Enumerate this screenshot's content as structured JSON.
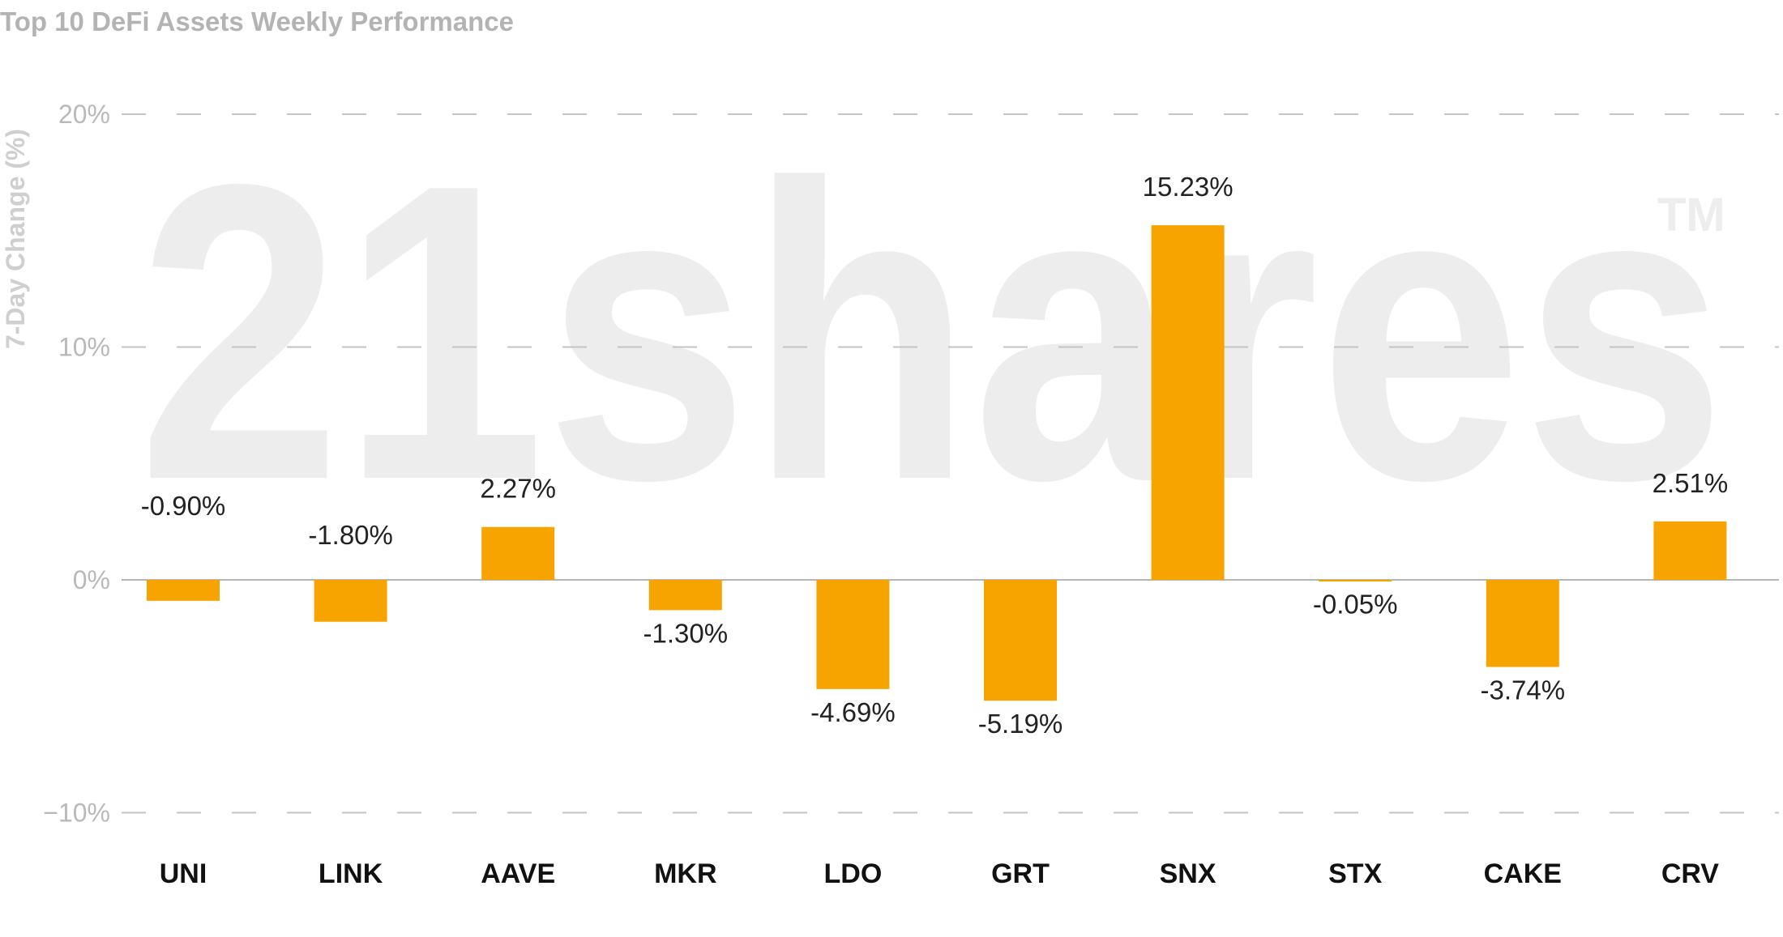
{
  "chart_data": {
    "type": "bar",
    "title": "Top 10 DeFi Assets Weekly Performance",
    "ylabel": "7-Day Change (%)",
    "xlabel": "",
    "ylim": [
      -10,
      20
    ],
    "yticks": [
      -10,
      0,
      10,
      20
    ],
    "ytick_labels": [
      "−10%",
      "0%",
      "10%",
      "20%"
    ],
    "grid": "horizontal dashed",
    "legend": "none",
    "categories": [
      "UNI",
      "LINK",
      "AAVE",
      "MKR",
      "LDO",
      "GRT",
      "SNX",
      "STX",
      "CAKE",
      "CRV"
    ],
    "values": [
      -0.9,
      -1.8,
      2.27,
      -1.3,
      -4.69,
      -5.19,
      15.23,
      -0.05,
      -3.74,
      2.51
    ],
    "value_labels": [
      "-0.90%",
      "-1.80%",
      "2.27%",
      "-1.30%",
      "-4.69%",
      "-5.19%",
      "15.23%",
      "-0.05%",
      "-3.74%",
      "2.51%"
    ],
    "bar_color": "#f7a400",
    "watermark": "21shares",
    "watermark_mark": "TM"
  }
}
